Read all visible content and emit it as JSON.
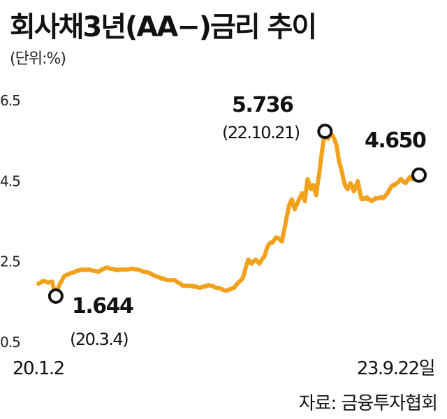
{
  "chart_data": {
    "type": "line",
    "title": "회사채3년(AA−)금리 추이",
    "unit_label": "(단위:%)",
    "ylim": [
      0.5,
      6.5
    ],
    "yticks": [
      "6.5",
      "4.5",
      "2.5",
      "0.5"
    ],
    "ytick_values": [
      6.5,
      4.5,
      2.5,
      0.5
    ],
    "x_start_label": "20.1.2",
    "x_end_label": "23.9.22일",
    "grid": false,
    "series": [
      {
        "color": "#F2A11A",
        "points": [
          [
            "2020-01-02",
            1.95
          ],
          [
            "2020-01-20",
            2.02
          ],
          [
            "2020-02-05",
            1.98
          ],
          [
            "2020-02-20",
            2.0
          ],
          [
            "2020-03-04",
            1.644
          ],
          [
            "2020-03-18",
            1.95
          ],
          [
            "2020-04-05",
            2.15
          ],
          [
            "2020-05-01",
            2.22
          ],
          [
            "2020-06-01",
            2.3
          ],
          [
            "2020-07-01",
            2.3
          ],
          [
            "2020-08-01",
            2.25
          ],
          [
            "2020-09-01",
            2.35
          ],
          [
            "2020-10-01",
            2.3
          ],
          [
            "2020-11-01",
            2.3
          ],
          [
            "2020-12-01",
            2.32
          ],
          [
            "2021-01-01",
            2.28
          ],
          [
            "2021-02-01",
            2.22
          ],
          [
            "2021-03-01",
            2.12
          ],
          [
            "2021-04-01",
            2.05
          ],
          [
            "2021-05-01",
            2.05
          ],
          [
            "2021-06-01",
            1.9
          ],
          [
            "2021-07-01",
            1.9
          ],
          [
            "2021-08-01",
            1.85
          ],
          [
            "2021-09-01",
            1.92
          ],
          [
            "2021-10-01",
            1.85
          ],
          [
            "2021-11-01",
            1.78
          ],
          [
            "2021-12-01",
            1.85
          ],
          [
            "2022-01-01",
            2.1
          ],
          [
            "2022-01-20",
            2.55
          ],
          [
            "2022-02-01",
            2.45
          ],
          [
            "2022-02-15",
            2.55
          ],
          [
            "2022-03-01",
            2.45
          ],
          [
            "2022-03-20",
            2.65
          ],
          [
            "2022-04-01",
            2.9
          ],
          [
            "2022-04-20",
            3.0
          ],
          [
            "2022-05-01",
            3.1
          ],
          [
            "2022-05-20",
            3.0
          ],
          [
            "2022-06-01",
            3.4
          ],
          [
            "2022-06-15",
            3.9
          ],
          [
            "2022-06-25",
            4.05
          ],
          [
            "2022-07-05",
            3.8
          ],
          [
            "2022-07-20",
            4.05
          ],
          [
            "2022-08-01",
            4.2
          ],
          [
            "2022-08-10",
            4.0
          ],
          [
            "2022-08-20",
            4.55
          ],
          [
            "2022-09-01",
            4.3
          ],
          [
            "2022-09-10",
            4.4
          ],
          [
            "2022-09-20",
            4.15
          ],
          [
            "2022-10-01",
            4.7
          ],
          [
            "2022-10-10",
            5.2
          ],
          [
            "2022-10-21",
            5.736
          ],
          [
            "2022-11-01",
            5.55
          ],
          [
            "2022-11-10",
            5.7
          ],
          [
            "2022-11-20",
            5.6
          ],
          [
            "2022-12-01",
            5.4
          ],
          [
            "2022-12-10",
            5.0
          ],
          [
            "2022-12-20",
            4.75
          ],
          [
            "2023-01-01",
            4.4
          ],
          [
            "2023-01-10",
            4.3
          ],
          [
            "2023-01-20",
            4.45
          ],
          [
            "2023-02-01",
            4.25
          ],
          [
            "2023-02-15",
            4.5
          ],
          [
            "2023-03-01",
            4.05
          ],
          [
            "2023-03-20",
            4.1
          ],
          [
            "2023-04-05",
            4.0
          ],
          [
            "2023-04-20",
            4.08
          ],
          [
            "2023-05-05",
            4.1
          ],
          [
            "2023-05-20",
            4.1
          ],
          [
            "2023-06-05",
            4.25
          ],
          [
            "2023-06-20",
            4.4
          ],
          [
            "2023-07-05",
            4.45
          ],
          [
            "2023-07-20",
            4.55
          ],
          [
            "2023-08-05",
            4.45
          ],
          [
            "2023-08-20",
            4.6
          ],
          [
            "2023-09-05",
            4.55
          ],
          [
            "2023-09-22",
            4.65
          ]
        ]
      }
    ],
    "annotations": [
      {
        "date": "2020-03-04",
        "value": 1.644,
        "value_label": "1.644",
        "date_label": "(20.3.4)"
      },
      {
        "date": "2022-10-21",
        "value": 5.736,
        "value_label": "5.736",
        "date_label": "(22.10.21)"
      },
      {
        "date": "2023-09-22",
        "value": 4.65,
        "value_label": "4.650",
        "date_label": ""
      }
    ]
  },
  "source": "자료: 금융투자협회"
}
